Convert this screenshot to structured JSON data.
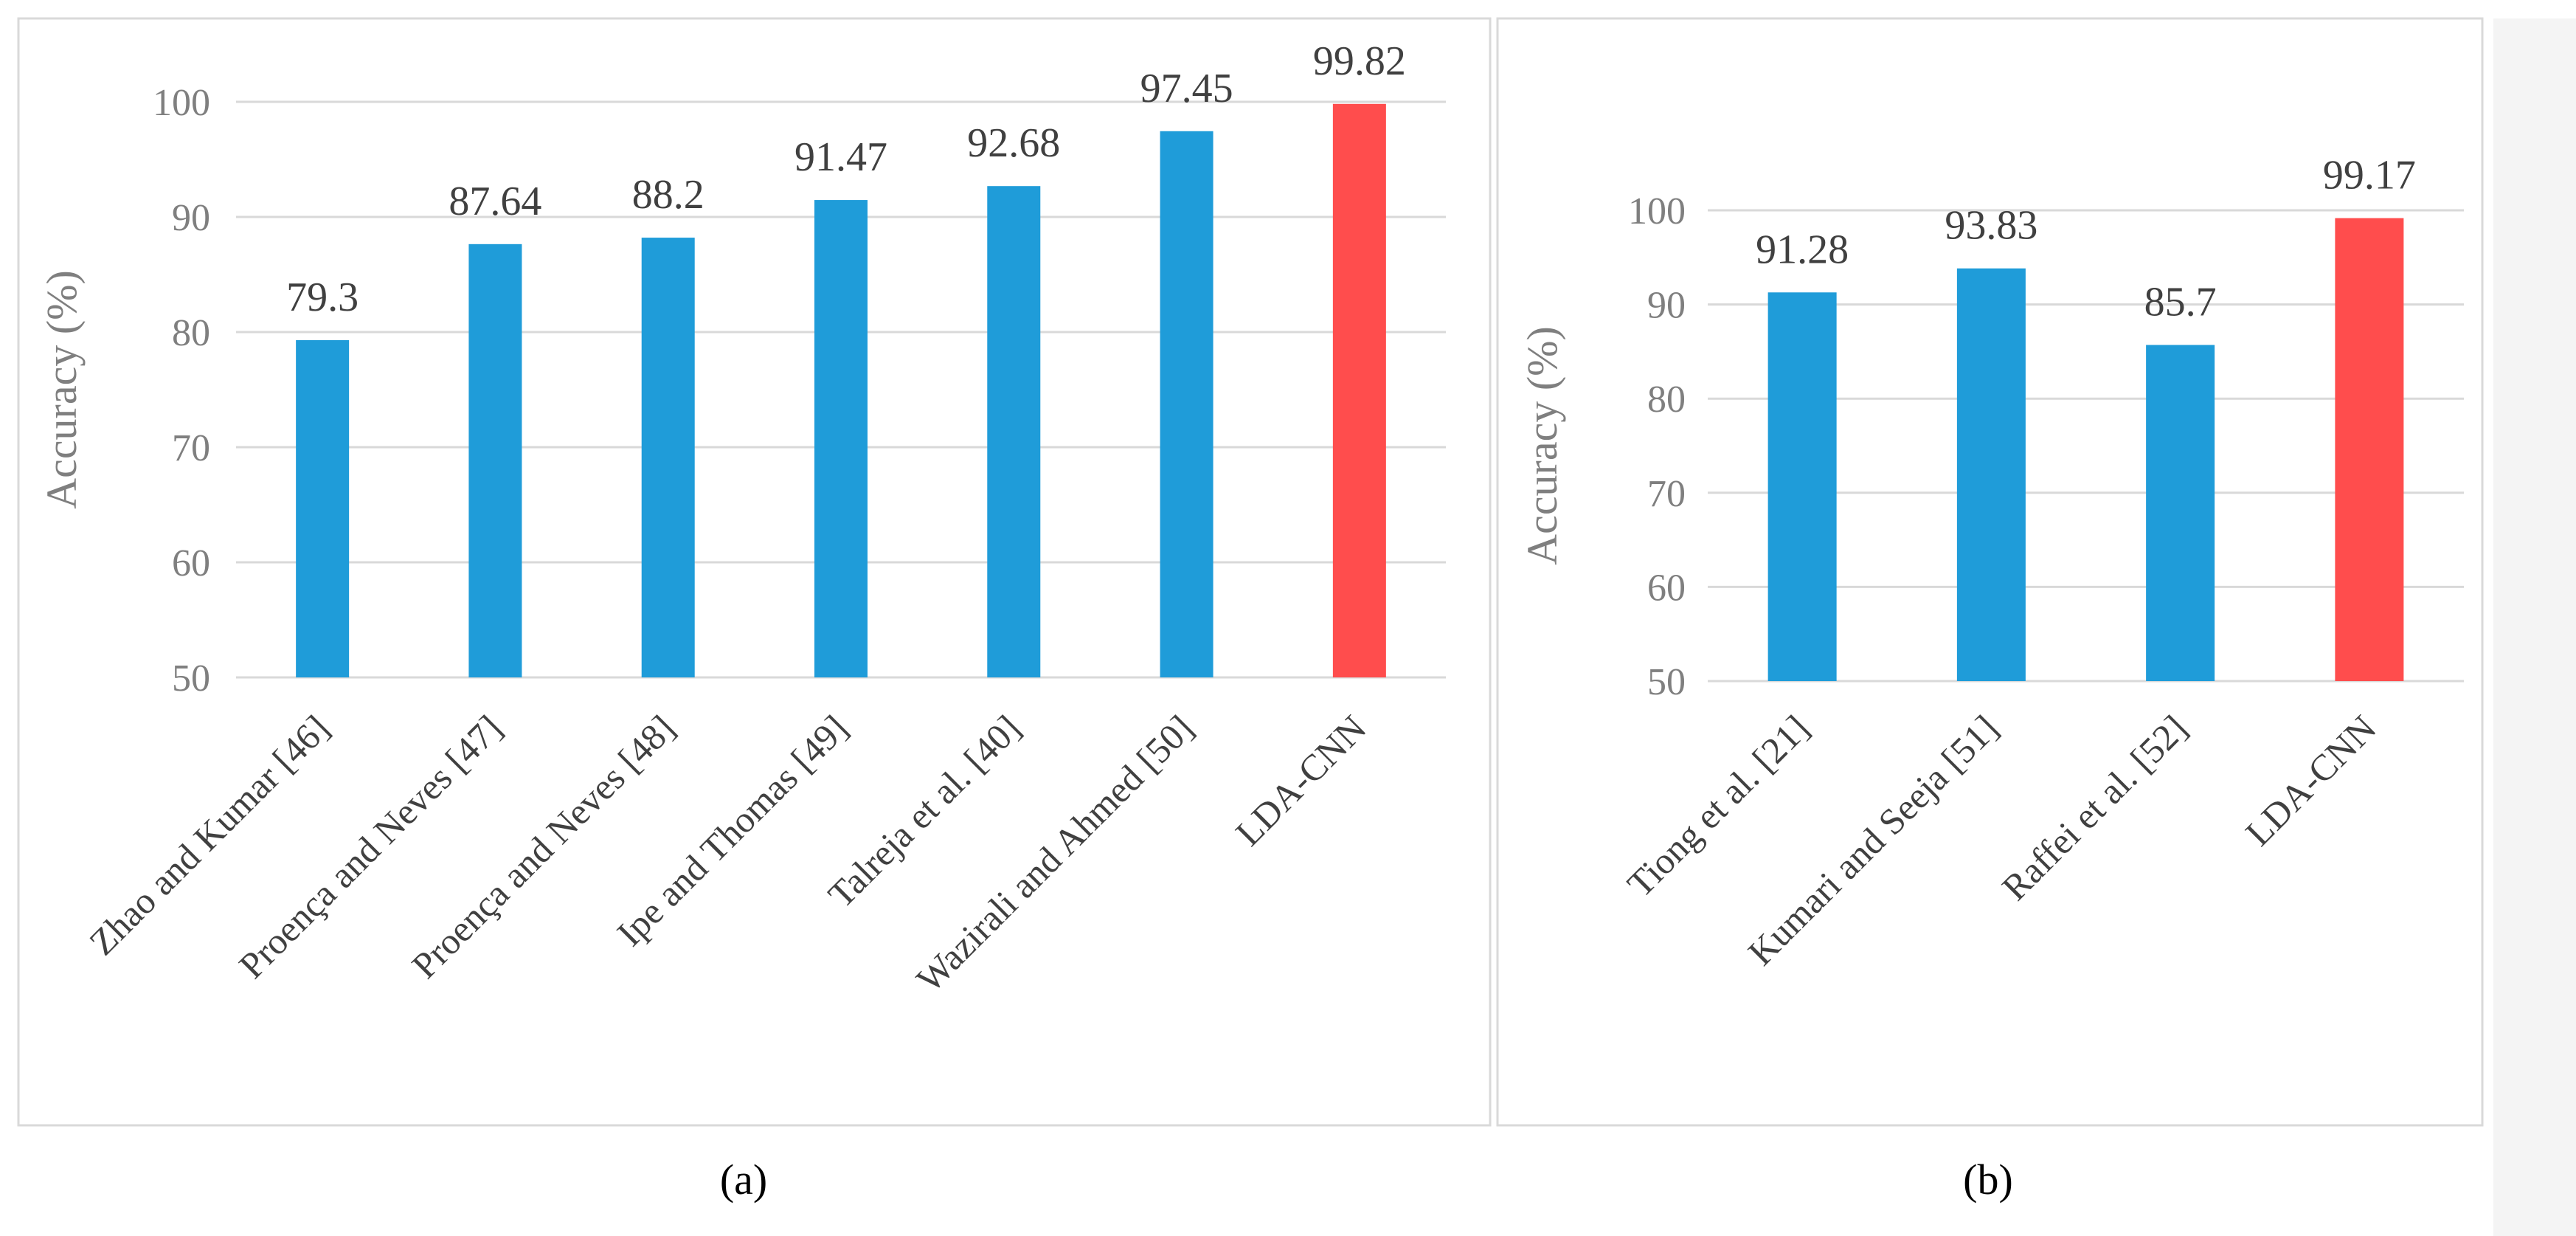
{
  "chart_data": [
    {
      "type": "bar",
      "panel_label": "(a)",
      "ylabel": "Accuracy (%)",
      "ylim": [
        50,
        100
      ],
      "yticks": [
        50,
        60,
        70,
        80,
        90,
        100
      ],
      "categories": [
        "Zhao and Kumar [46]",
        "Proença and Neves [47]",
        "Proença and Neves [48]",
        "Ipe and Thomas [49]",
        "Talreja et al. [40]",
        "Wazirali and Ahmed [50]",
        "LDA-CNN"
      ],
      "values": [
        79.3,
        87.64,
        88.2,
        91.47,
        92.68,
        97.45,
        99.82
      ],
      "data_labels": [
        "79.3",
        "87.64",
        "88.2",
        "91.47",
        "92.68",
        "97.45",
        "99.82"
      ],
      "colors": [
        "#1f9cd9",
        "#1f9cd9",
        "#1f9cd9",
        "#1f9cd9",
        "#1f9cd9",
        "#1f9cd9",
        "#ff4d4d"
      ],
      "grid": true,
      "legend": "none"
    },
    {
      "type": "bar",
      "panel_label": "(b)",
      "ylabel": "Accuracy (%)",
      "ylim": [
        50,
        100
      ],
      "yticks": [
        50,
        60,
        70,
        80,
        90,
        100
      ],
      "categories": [
        "Tiong et al. [21]",
        "Kumari and Seeja [51]",
        "Raffei et al. [52]",
        "LDA-CNN"
      ],
      "values": [
        91.28,
        93.83,
        85.7,
        99.17
      ],
      "data_labels": [
        "91.28",
        "93.83",
        "85.7",
        "99.17"
      ],
      "colors": [
        "#1f9cd9",
        "#1f9cd9",
        "#1f9cd9",
        "#ff4d4d"
      ],
      "grid": true,
      "legend": "none"
    }
  ]
}
